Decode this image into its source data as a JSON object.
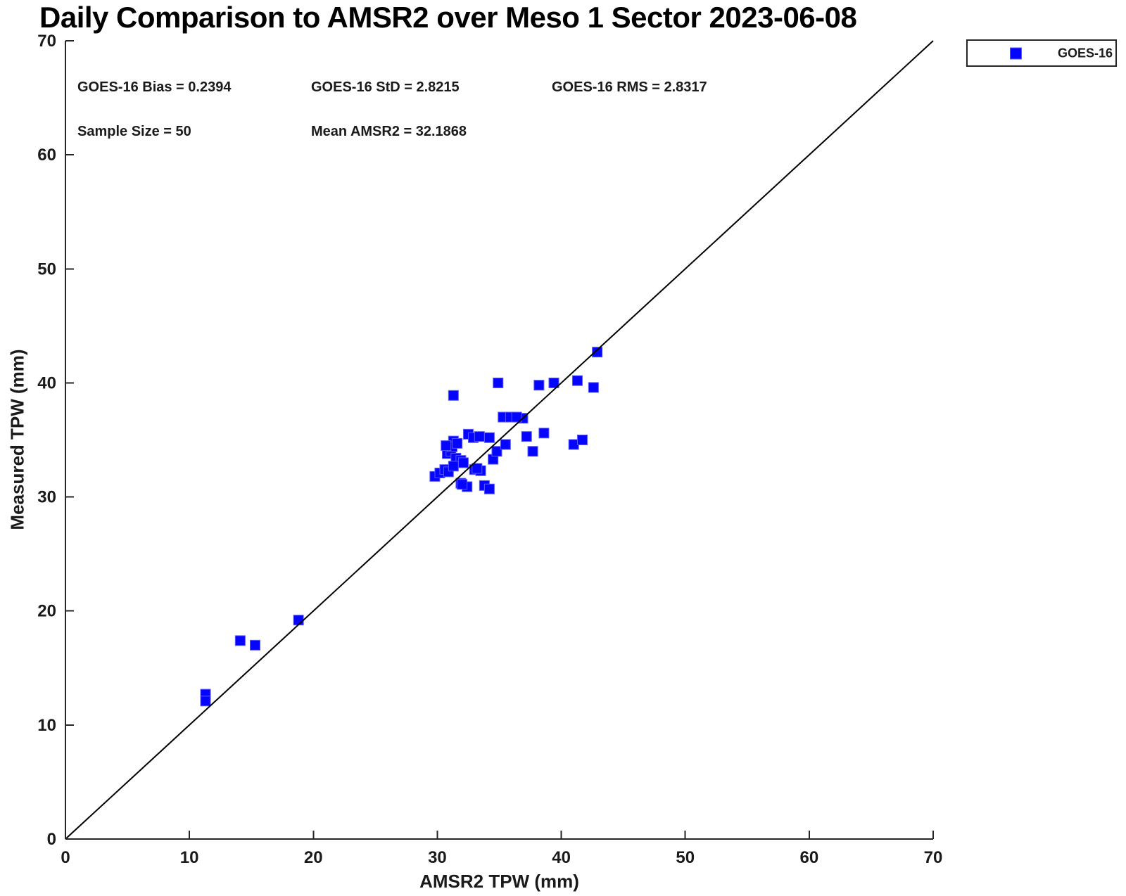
{
  "figure": {
    "stats": {
      "bias": "GOES-16 Bias = 0.2394",
      "std": "GOES-16 StD = 2.8215",
      "rms": "GOES-16 RMS = 2.8317",
      "sample_size": "Sample Size = 50",
      "mean_amsr2": "Mean AMSR2 = 32.1868"
    },
    "legend": {
      "entries": [
        {
          "label": "GOES-16",
          "marker": "square",
          "color": "#0404ff"
        }
      ]
    }
  },
  "chart_data": {
    "type": "scatter",
    "title": "Daily Comparison to AMSR2 over Meso 1 Sector 2023-06-08",
    "xlabel": "AMSR2 TPW (mm)",
    "ylabel": "Measured TPW (mm)",
    "xlim": [
      0,
      70
    ],
    "ylim": [
      0,
      70
    ],
    "xticks": [
      0,
      10,
      20,
      30,
      40,
      50,
      60,
      70
    ],
    "yticks": [
      0,
      10,
      20,
      30,
      40,
      50,
      60,
      70
    ],
    "grid": false,
    "legend_position": "top-right",
    "stats": {
      "goes16_bias": 0.2394,
      "goes16_std": 2.8215,
      "goes16_rms": 2.8317,
      "sample_size": 50,
      "mean_amsr2": 32.1868
    },
    "annotations": [
      "GOES-16 Bias = 0.2394",
      "GOES-16 StD = 2.8215",
      "GOES-16 RMS = 2.8317",
      "Sample Size = 50",
      "Mean AMSR2 = 32.1868"
    ],
    "reference_line": {
      "label": "1:1 line",
      "from": [
        0,
        0
      ],
      "to": [
        70,
        70
      ],
      "color": "#000000"
    },
    "series": [
      {
        "name": "GOES-16",
        "marker": "square",
        "color": "#0404ff",
        "points": [
          [
            11.3,
            12.7
          ],
          [
            11.3,
            12.1
          ],
          [
            14.1,
            17.4
          ],
          [
            15.3,
            17.0
          ],
          [
            18.8,
            19.2
          ],
          [
            29.8,
            31.8
          ],
          [
            30.2,
            32.1
          ],
          [
            30.6,
            32.4
          ],
          [
            30.9,
            32.2
          ],
          [
            30.8,
            33.8
          ],
          [
            31.1,
            34.0
          ],
          [
            31.3,
            34.9
          ],
          [
            31.2,
            34.4
          ],
          [
            31.5,
            33.4
          ],
          [
            31.9,
            33.2
          ],
          [
            31.3,
            32.7
          ],
          [
            32.1,
            33.0
          ],
          [
            31.3,
            38.9
          ],
          [
            31.9,
            31.2
          ],
          [
            32.4,
            30.9
          ],
          [
            32.0,
            31.1
          ],
          [
            32.5,
            35.5
          ],
          [
            32.9,
            35.2
          ],
          [
            34.2,
            35.2
          ],
          [
            33.0,
            32.4
          ],
          [
            33.5,
            32.3
          ],
          [
            33.2,
            32.5
          ],
          [
            33.8,
            31.0
          ],
          [
            34.2,
            30.7
          ],
          [
            34.5,
            33.3
          ],
          [
            34.8,
            34.0
          ],
          [
            35.5,
            34.6
          ],
          [
            34.9,
            40.0
          ],
          [
            35.3,
            37.0
          ],
          [
            35.9,
            37.0
          ],
          [
            36.9,
            36.9
          ],
          [
            36.4,
            37.0
          ],
          [
            37.2,
            35.3
          ],
          [
            37.7,
            34.0
          ],
          [
            38.2,
            39.8
          ],
          [
            38.6,
            35.6
          ],
          [
            39.4,
            40.0
          ],
          [
            41.0,
            34.6
          ],
          [
            41.7,
            35.0
          ],
          [
            41.3,
            40.2
          ],
          [
            42.6,
            39.6
          ],
          [
            42.9,
            42.7
          ],
          [
            30.7,
            34.5
          ],
          [
            31.6,
            34.7
          ],
          [
            33.4,
            35.3
          ]
        ]
      }
    ]
  }
}
